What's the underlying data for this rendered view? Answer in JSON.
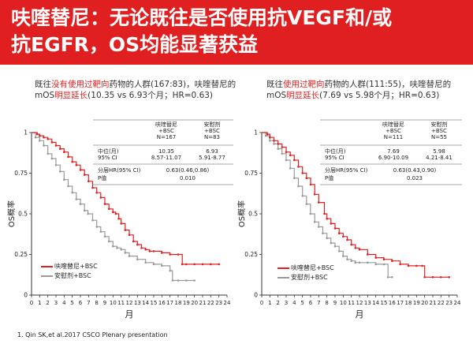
{
  "header": {
    "line1": "呋喹替尼：无论既往是否使用抗VEGF和/或",
    "line2": "抗EGFR，OS均能显著获益"
  },
  "left": {
    "desc": {
      "pre": "既往",
      "hl": "没有使用过靶向",
      "post": "药物的人群(167:83)，呋喹替尼的",
      "l2_pre": "mOS",
      "l2_hl": "明显延长",
      "l2_post": "(10.35 vs 6.93个月；HR=0.63)"
    },
    "stats": {
      "col1_head": [
        "呋喹替尼",
        "+BSC",
        "N=167"
      ],
      "col2_head": [
        "安慰剂",
        "+BSC",
        "N=83"
      ],
      "r1_label": "中位(月)",
      "r1_sub": "95% CI",
      "r1_c1": "10.35",
      "r1_c1sub": "8.57-11.07",
      "r1_c2": "6.93",
      "r1_c2sub": "5.91-8.77",
      "r2_label": "分层HR(95% CI)",
      "r2_val": "0.63(0.46,0.86)",
      "r3_label": "P值",
      "r3_val": "0.010"
    },
    "legend": {
      "s1": "呋喹替尼+BSC",
      "s2": "安慰剂+BSC"
    }
  },
  "right": {
    "desc": {
      "pre": "既往",
      "hl": "使用过靶向",
      "post": "药物的人群(111:55)，呋喹替尼的",
      "l2_pre": "mOS",
      "l2_hl": "明显延长",
      "l2_post": "(7.69 vs 5.98个月；HR=0.63)"
    },
    "stats": {
      "col1_head": [
        "呋喹替尼",
        "+BSC",
        "N=111"
      ],
      "col2_head": [
        "安慰剂",
        "+BSC",
        "N=55"
      ],
      "r1_label": "中位(月)",
      "r1_sub": "95% CI",
      "r1_c1": "7.69",
      "r1_c1sub": "6.90-10.09",
      "r1_c2": "5.98",
      "r1_c2sub": "4.21-8.41",
      "r2_label": "分层HR(95% CI)",
      "r2_val": "0.63(0.43,0.90)",
      "r3_label": "P值",
      "r3_val": "0.023"
    },
    "legend": {
      "s1": "呋喹替尼+BSC",
      "s2": "安慰剂+BSC"
    }
  },
  "footnote": "1.   Qin SK,et al.2017 CSCO Plenary presentation",
  "chart_data": [
    {
      "type": "line",
      "xlabel": "月",
      "ylabel": "OS概率",
      "xlim": [
        0,
        24
      ],
      "ylim": [
        0,
        1
      ],
      "xticks": [
        "0",
        "1",
        "2",
        "3",
        "4",
        "5",
        "6",
        "7",
        "8",
        "9",
        "10",
        "11",
        "12",
        "13",
        "14",
        "15",
        "16",
        "17",
        "18",
        "19",
        "20",
        "21",
        "22",
        "23",
        "24"
      ],
      "yticks": [
        "0",
        "0.25",
        "0.5",
        "0.75",
        "1"
      ],
      "series": [
        {
          "name": "呋喹替尼+BSC",
          "color": "#e02020",
          "x": [
            0,
            0.7,
            1,
            1.5,
            2,
            2.5,
            3,
            3.5,
            4,
            4.5,
            5,
            5.5,
            6,
            6.5,
            7,
            7.5,
            8,
            8.5,
            9,
            9.5,
            10,
            10.35,
            10.7,
            11,
            11.5,
            12,
            12.5,
            13,
            13.5,
            14,
            14.5,
            15,
            16,
            17,
            18,
            18.5,
            19,
            20,
            21,
            22,
            23
          ],
          "y": [
            1,
            0.99,
            0.98,
            0.97,
            0.96,
            0.94,
            0.92,
            0.9,
            0.88,
            0.85,
            0.82,
            0.8,
            0.77,
            0.74,
            0.7,
            0.66,
            0.63,
            0.6,
            0.56,
            0.53,
            0.51,
            0.5,
            0.47,
            0.44,
            0.4,
            0.37,
            0.33,
            0.31,
            0.29,
            0.28,
            0.27,
            0.27,
            0.26,
            0.25,
            0.25,
            0.19,
            0.19,
            0.19,
            0.19,
            0.19,
            0.19
          ]
        },
        {
          "name": "安慰剂+BSC",
          "color": "#999999",
          "x": [
            0,
            0.5,
            1,
            1.5,
            2,
            2.5,
            3,
            3.5,
            4,
            4.5,
            5,
            5.5,
            6,
            6.5,
            6.93,
            7.5,
            8,
            8.5,
            9,
            9.5,
            10,
            10.5,
            11,
            11.5,
            12,
            13,
            14,
            15,
            16,
            17,
            17.3,
            18,
            19,
            20
          ],
          "y": [
            1,
            0.97,
            0.95,
            0.92,
            0.87,
            0.84,
            0.8,
            0.76,
            0.71,
            0.67,
            0.63,
            0.59,
            0.56,
            0.52,
            0.5,
            0.46,
            0.42,
            0.39,
            0.36,
            0.33,
            0.3,
            0.29,
            0.28,
            0.26,
            0.24,
            0.22,
            0.2,
            0.19,
            0.18,
            0.15,
            0.09,
            0.09,
            0.09,
            0.09
          ]
        }
      ]
    },
    {
      "type": "line",
      "xlabel": "月",
      "ylabel": "OS概率",
      "xlim": [
        0,
        24
      ],
      "ylim": [
        0,
        1
      ],
      "xticks": [
        "0",
        "1",
        "2",
        "3",
        "4",
        "5",
        "6",
        "7",
        "8",
        "9",
        "10",
        "11",
        "12",
        "13",
        "14",
        "15",
        "16",
        "17",
        "18",
        "19",
        "20",
        "21",
        "22",
        "23",
        "24"
      ],
      "yticks": [
        "0",
        "0.25",
        "0.5",
        "0.75",
        "1"
      ],
      "series": [
        {
          "name": "呋喹替尼+BSC",
          "color": "#e02020",
          "x": [
            0,
            0.7,
            1,
            1.5,
            2,
            2.5,
            3,
            3.5,
            4,
            4.5,
            5,
            5.5,
            6,
            6.5,
            7,
            7.69,
            8,
            8.5,
            9,
            9.5,
            10,
            10.5,
            11,
            11.5,
            12,
            13,
            14,
            15,
            16,
            17,
            18,
            19,
            19.7,
            20,
            21,
            22,
            23
          ],
          "y": [
            1,
            0.99,
            0.97,
            0.95,
            0.93,
            0.91,
            0.88,
            0.86,
            0.83,
            0.79,
            0.75,
            0.72,
            0.68,
            0.62,
            0.57,
            0.5,
            0.47,
            0.44,
            0.41,
            0.38,
            0.36,
            0.34,
            0.31,
            0.29,
            0.28,
            0.25,
            0.23,
            0.22,
            0.21,
            0.19,
            0.18,
            0.18,
            0.18,
            0.11,
            0.11,
            0.11,
            0.11
          ]
        },
        {
          "name": "安慰剂+BSC",
          "color": "#999999",
          "x": [
            0,
            0.5,
            1,
            1.5,
            2,
            2.5,
            3,
            3.5,
            4,
            4.5,
            5,
            5.5,
            5.98,
            6.5,
            7,
            7.5,
            8,
            8.5,
            9,
            9.5,
            10,
            10.5,
            11,
            11.5,
            12,
            13,
            14,
            15,
            15.5,
            16
          ],
          "y": [
            1,
            0.98,
            0.95,
            0.93,
            0.9,
            0.87,
            0.83,
            0.78,
            0.72,
            0.67,
            0.61,
            0.56,
            0.5,
            0.45,
            0.42,
            0.38,
            0.35,
            0.32,
            0.3,
            0.27,
            0.24,
            0.22,
            0.21,
            0.2,
            0.2,
            0.2,
            0.19,
            0.19,
            0.11,
            0.11
          ]
        }
      ]
    }
  ]
}
